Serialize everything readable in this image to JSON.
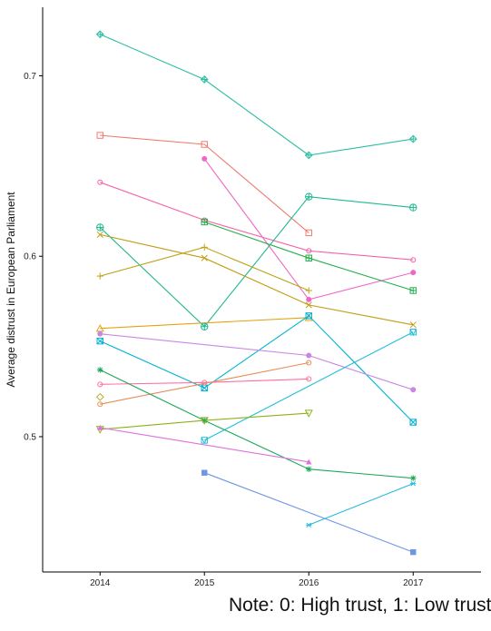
{
  "chart_data": {
    "type": "line",
    "x": [
      2014,
      2015,
      2016,
      2017
    ],
    "xticks": [
      "2014",
      "2015",
      "2016",
      "2017"
    ],
    "xlim": [
      2013.45,
      2017.65
    ],
    "ylabel": "Average distrust in European Parliament",
    "yticks": [
      0.5,
      0.6,
      0.7
    ],
    "ytick_labels": [
      "0.5",
      "0.6",
      "0.7"
    ],
    "ylim": [
      0.425,
      0.738
    ],
    "grid": false,
    "legend": "none",
    "series": [
      {
        "color": "#2DBDA4",
        "marker": "diamond-plus",
        "values": [
          0.723,
          0.698,
          0.656,
          0.665
        ]
      },
      {
        "color": "#F07C6E",
        "marker": "square-open",
        "values": [
          0.667,
          0.662,
          0.613,
          null
        ]
      },
      {
        "color": "#F564A8",
        "marker": "circle-open",
        "values": [
          0.641,
          0.62,
          0.603,
          0.598
        ]
      },
      {
        "color": "#F066C7",
        "marker": "circle-filled",
        "values": [
          null,
          0.654,
          0.576,
          0.591
        ]
      },
      {
        "color": "#22B04A",
        "marker": "square-cross",
        "values": [
          null,
          0.619,
          0.599,
          0.581
        ]
      },
      {
        "color": "#1FB891",
        "marker": "circle-plus",
        "values": [
          0.616,
          0.561,
          0.633,
          0.627
        ]
      },
      {
        "color": "#C29C11",
        "marker": "cross",
        "values": [
          0.612,
          0.599,
          0.573,
          0.562
        ]
      },
      {
        "color": "#BDA215",
        "marker": "plus",
        "values": [
          0.589,
          0.605,
          0.581,
          null
        ]
      },
      {
        "color": "#E4A315",
        "marker": "triangle-open",
        "values": [
          0.56,
          null,
          0.566,
          null
        ]
      },
      {
        "color": "#00B3D6",
        "marker": "square-x",
        "values": [
          0.553,
          0.527,
          0.567,
          0.508
        ]
      },
      {
        "color": "#C887E6",
        "marker": "circle-filled",
        "values": [
          0.557,
          null,
          0.545,
          0.526
        ]
      },
      {
        "color": "#20BFD9",
        "marker": "square-triangle",
        "values": [
          null,
          0.498,
          null,
          0.558
        ]
      },
      {
        "color": "#FF6F9E",
        "marker": "circle-open",
        "values": [
          0.529,
          0.53,
          0.532,
          null
        ]
      },
      {
        "color": "#E88A55",
        "marker": "circle-open",
        "values": [
          0.518,
          null,
          0.541,
          null
        ]
      },
      {
        "color": "#B8B128",
        "marker": "diamond-open",
        "values": [
          0.522,
          null,
          null,
          null
        ]
      },
      {
        "color": "#1CA95A",
        "marker": "asterisk",
        "values": [
          0.537,
          0.509,
          0.482,
          0.477
        ]
      },
      {
        "color": "#8DB11A",
        "marker": "triangle-down-open",
        "values": [
          0.504,
          0.509,
          0.513,
          null
        ]
      },
      {
        "color": "#E070DA",
        "marker": "triangle-filled",
        "values": [
          0.505,
          null,
          0.486,
          null
        ]
      },
      {
        "color": "#24B9DE",
        "marker": "asterisk-small",
        "values": [
          null,
          null,
          0.451,
          0.474
        ]
      },
      {
        "color": "#6F95E5",
        "marker": "square-filled",
        "values": [
          null,
          0.48,
          null,
          0.436
        ]
      }
    ]
  },
  "note": "Note: 0: High trust, 1: Low trust"
}
